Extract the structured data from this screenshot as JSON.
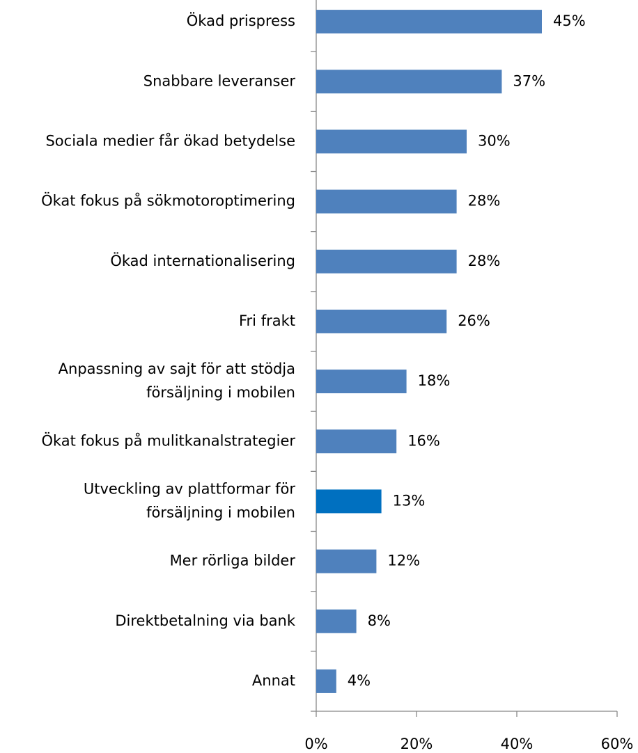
{
  "chart_data": {
    "type": "bar",
    "orientation": "horizontal",
    "categories": [
      "Ökad prispress",
      "Snabbare leveranser",
      "Sociala medier får ökad betydelse",
      "Ökat fokus på sökmotoroptimering",
      "Ökad internationalisering",
      "Fri frakt",
      "Anpassning av sajt för att stödja\nförsäljning i mobilen",
      "Ökat fokus på mulitkanalstrategier",
      "Utveckling av plattformar för\nförsäljning i mobilen",
      "Mer rörliga bilder",
      "Direktbetalning via bank",
      "Annat"
    ],
    "values": [
      45,
      37,
      30,
      28,
      28,
      26,
      18,
      16,
      13,
      12,
      8,
      4
    ],
    "value_labels": [
      "45%",
      "37%",
      "30%",
      "28%",
      "28%",
      "26%",
      "18%",
      "16%",
      "13%",
      "12%",
      "8%",
      "4%"
    ],
    "colors": [
      "#4f81bd",
      "#4f81bd",
      "#4f81bd",
      "#4f81bd",
      "#4f81bd",
      "#4f81bd",
      "#4f81bd",
      "#4f81bd",
      "#0070c0",
      "#4f81bd",
      "#4f81bd",
      "#4f81bd"
    ],
    "xlim": [
      0,
      60
    ],
    "xticks": [
      {
        "value": 0,
        "label": "0%"
      },
      {
        "value": 20,
        "label": "20%"
      },
      {
        "value": 40,
        "label": "40%"
      },
      {
        "value": 60,
        "label": "60%"
      }
    ],
    "grid": false
  }
}
